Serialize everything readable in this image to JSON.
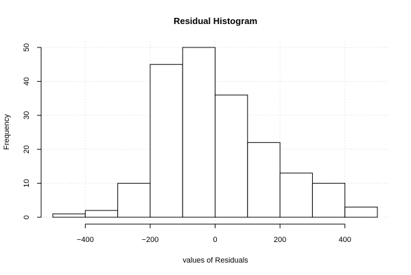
{
  "chart_data": {
    "type": "bar",
    "title": "Residual Histogram",
    "xlabel": "values of Residuals",
    "ylabel": "Frequency",
    "bins": [
      {
        "from": -500,
        "to": -400,
        "count": 1
      },
      {
        "from": -400,
        "to": -300,
        "count": 2
      },
      {
        "from": -300,
        "to": -200,
        "count": 10
      },
      {
        "from": -200,
        "to": -100,
        "count": 45
      },
      {
        "from": -100,
        "to": 0,
        "count": 50
      },
      {
        "from": 0,
        "to": 100,
        "count": 36
      },
      {
        "from": 100,
        "to": 200,
        "count": 22
      },
      {
        "from": 200,
        "to": 300,
        "count": 13
      },
      {
        "from": 300,
        "to": 400,
        "count": 10
      },
      {
        "from": 400,
        "to": 500,
        "count": 3
      }
    ],
    "xlim": [
      -500,
      500
    ],
    "ylim": [
      0,
      50
    ],
    "x_ticks": [
      -400,
      -200,
      0,
      200,
      400
    ],
    "y_ticks": [
      0,
      10,
      20,
      30,
      40,
      50
    ],
    "grid": true
  }
}
